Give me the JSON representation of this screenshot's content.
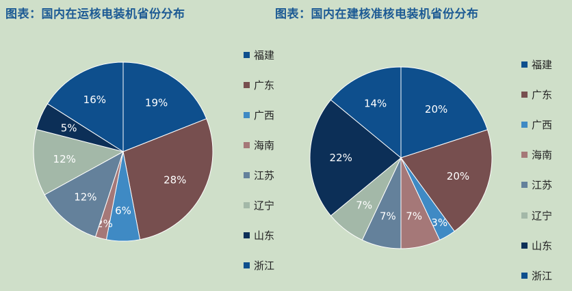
{
  "chart_data": [
    {
      "type": "pie",
      "title": "图表：国内在运核电装机省份分布",
      "categories": [
        "福建",
        "广东",
        "广西",
        "海南",
        "江苏",
        "辽宁",
        "山东",
        "浙江"
      ],
      "values": [
        19,
        28,
        6,
        2,
        12,
        12,
        5,
        16
      ],
      "data_labels": [
        "19%",
        "28%",
        "6%",
        "2%",
        "12%",
        "12%",
        "5%",
        "16%"
      ],
      "colors": [
        "#0e4f8d",
        "#774f4f",
        "#3f8ac4",
        "#a57878",
        "#64819b",
        "#a3b8a8",
        "#0c2f57",
        "#0e4f8d"
      ],
      "label_colors": [
        "#ffffff",
        "#ffffff",
        "#ffffff",
        "#ffffff",
        "#ffffff",
        "#ffffff",
        "#ffffff",
        "#ffffff"
      ],
      "legend_position": "right"
    },
    {
      "type": "pie",
      "title": "图表：国内在建核准核电装机省份分布",
      "categories": [
        "福建",
        "广东",
        "广西",
        "海南",
        "江苏",
        "辽宁",
        "山东",
        "浙江"
      ],
      "values": [
        20,
        20,
        3,
        7,
        7,
        7,
        22,
        14
      ],
      "data_labels": [
        "20%",
        "20%",
        "3%",
        "7%",
        "7%",
        "7%",
        "22%",
        "14%"
      ],
      "colors": [
        "#0e4f8d",
        "#774f4f",
        "#3f8ac4",
        "#a57878",
        "#64819b",
        "#a3b8a8",
        "#0c2f57",
        "#0e4f8d"
      ],
      "label_colors": [
        "#ffffff",
        "#ffffff",
        "#ffffff",
        "#ffffff",
        "#ffffff",
        "#ffffff",
        "#ffffff",
        "#ffffff"
      ],
      "legend_position": "right"
    }
  ]
}
